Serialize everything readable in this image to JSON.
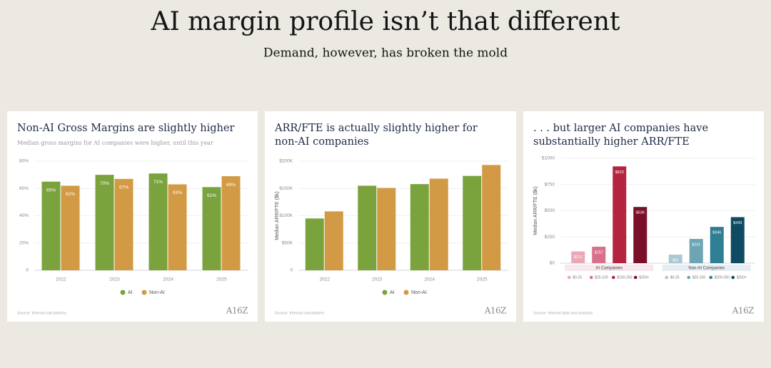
{
  "slide": {
    "title": "AI margin profile isn’t that different",
    "subtitle": "Demand, however, has broken the mold"
  },
  "brand": "A16Z",
  "chart_data": [
    {
      "type": "bar",
      "title": "Non-AI Gross Margins are slightly higher",
      "subtitle": "Median gross margins for AI companies were higher, until this year",
      "categories": [
        "2022",
        "2023",
        "2024",
        "2025"
      ],
      "series": [
        {
          "name": "AI",
          "color": "#7aa33e",
          "values": [
            65,
            70,
            71,
            61
          ],
          "value_labels": [
            "65%",
            "70%",
            "71%",
            "61%"
          ]
        },
        {
          "name": "Non-AI",
          "color": "#d39a45",
          "values": [
            62,
            67,
            63,
            69
          ],
          "value_labels": [
            "62%",
            "67%",
            "63%",
            "69%"
          ]
        }
      ],
      "ylim": [
        0,
        80
      ],
      "yticks": [
        0,
        {
          "value": 20,
          "label": "20%"
        },
        {
          "value": 40,
          "label": "40%"
        },
        {
          "value": 60,
          "label": "60%"
        },
        {
          "value": 80,
          "label": "80%"
        }
      ],
      "grid": true,
      "source": "Source: Internal calculations"
    },
    {
      "type": "bar",
      "title": "ARR/FTE is actually slightly higher for non-AI companies",
      "ylabel": "Median ARR/FTE ($k)",
      "categories": [
        "2022",
        "2023",
        "2024",
        "2025"
      ],
      "series": [
        {
          "name": "AI",
          "color": "#7aa33e",
          "values": [
            95,
            155,
            158,
            173
          ]
        },
        {
          "name": "Non-AI",
          "color": "#d39a45",
          "values": [
            108,
            151,
            168,
            193
          ]
        }
      ],
      "ylim": [
        0,
        200
      ],
      "yticks": [
        0,
        {
          "value": 50,
          "label": "$50K"
        },
        {
          "value": 100,
          "label": "$100K"
        },
        {
          "value": 150,
          "label": "$150K"
        },
        {
          "value": 200,
          "label": "$200K"
        }
      ],
      "grid": true,
      "source": "Source: Internal calculations"
    },
    {
      "type": "bar",
      "title": ". . . but larger AI companies have substantially higher ARR/FTE",
      "ylabel": "Median ARR/FTE ($k)",
      "groups": [
        {
          "name": "AI Companies",
          "series": [
            {
              "name": "$0-25",
              "color": "#e9a8b5",
              "value": 112,
              "value_label": "$112"
            },
            {
              "name": "$25-100",
              "color": "#d9708a",
              "value": 157,
              "value_label": "$157"
            },
            {
              "name": "$100-250",
              "color": "#b5243f",
              "value": 923,
              "value_label": "$923"
            },
            {
              "name": "$250+",
              "color": "#7a0f2a",
              "value": 536,
              "value_label": "$536"
            }
          ]
        },
        {
          "name": "Non-AI Companies",
          "series": [
            {
              "name": "$0-25",
              "color": "#a9c8d3",
              "value": 81,
              "value_label": "$81"
            },
            {
              "name": "$25-100",
              "color": "#6ea4b4",
              "value": 231,
              "value_label": "$231"
            },
            {
              "name": "$100-250",
              "color": "#2e7f94",
              "value": 346,
              "value_label": "$346"
            },
            {
              "name": "$250+",
              "color": "#0f4a62",
              "value": 439,
              "value_label": "$439"
            }
          ]
        }
      ],
      "ylim": [
        0,
        1000
      ],
      "yticks": [
        {
          "value": 0,
          "label": "$0"
        },
        {
          "value": 250,
          "label": "$250"
        },
        {
          "value": 500,
          "label": "$500"
        },
        {
          "value": 750,
          "label": "$750"
        },
        {
          "value": 1000,
          "label": "$1000"
        }
      ],
      "grid": true,
      "source": "Source: Internal data and analysis"
    }
  ]
}
